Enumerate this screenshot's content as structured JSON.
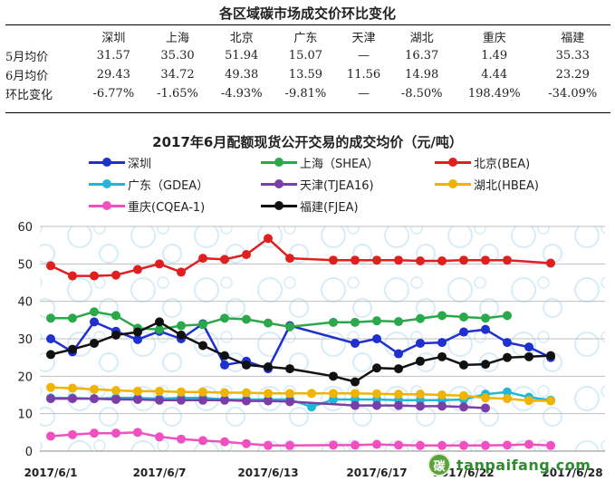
{
  "summary_table": {
    "title": "各区域碳市场成交价环比变化",
    "columns": [
      "深圳",
      "上海",
      "北京",
      "广东",
      "天津",
      "湖北",
      "重庆",
      "福建"
    ],
    "rows": [
      {
        "label": "5月均价",
        "values": [
          "31.57",
          "35.30",
          "51.94",
          "15.07",
          "—",
          "16.37",
          "1.49",
          "35.33"
        ]
      },
      {
        "label": "6月均价",
        "values": [
          "29.43",
          "34.72",
          "49.38",
          "13.59",
          "11.56",
          "14.98",
          "4.44",
          "23.29"
        ]
      },
      {
        "label": "环比变化",
        "values": [
          "-6.77%",
          "-1.65%",
          "-4.93%",
          "-9.81%",
          "—",
          "-8.50%",
          "198.49%",
          "-34.09%"
        ]
      }
    ]
  },
  "chart_data": {
    "type": "line",
    "title": "2017年6月配额现货公开交易的成交均价（元/吨）",
    "xlabel": "",
    "ylabel": "",
    "ylim": [
      0,
      60
    ],
    "yticks": [
      0,
      10,
      20,
      30,
      40,
      50,
      60
    ],
    "x_tick_labels": [
      "2017/6/1",
      "2017/6/7",
      "2017/6/13",
      "2017/6/17",
      "2017/6/22",
      "2017/6/28"
    ],
    "x_tick_positions": [
      0,
      5,
      10,
      15,
      19,
      24
    ],
    "x_count": 26,
    "grid": "horizontal",
    "legend_position": "top",
    "series": [
      {
        "name": "深圳",
        "color": "#1f2fd0",
        "values": [
          30.0,
          26.5,
          34.5,
          32.0,
          29.8,
          32.0,
          30.0,
          34.0,
          23.0,
          24.0,
          22.0,
          33.5,
          null,
          null,
          28.8,
          30.0,
          26.0,
          28.8,
          29.0,
          31.8,
          32.5,
          29.0,
          27.8,
          25.0,
          null,
          null
        ]
      },
      {
        "name": "上海（SHEA）",
        "color": "#2aa84a",
        "values": [
          35.5,
          35.5,
          37.2,
          36.2,
          32.8,
          32.5,
          33.5,
          33.8,
          35.5,
          35.2,
          34.2,
          33.2,
          null,
          34.4,
          34.4,
          34.8,
          34.6,
          35.4,
          36.2,
          35.8,
          35.5,
          36.2,
          null,
          null,
          null,
          null
        ]
      },
      {
        "name": "北京(BEA)",
        "color": "#e02020",
        "values": [
          49.5,
          46.8,
          46.8,
          47.0,
          48.5,
          50.0,
          47.8,
          51.5,
          51.2,
          52.5,
          56.8,
          51.5,
          null,
          51.0,
          51.0,
          51.0,
          51.0,
          50.8,
          50.8,
          51.0,
          51.0,
          51.0,
          null,
          50.2,
          null,
          null
        ]
      },
      {
        "name": "广东（GDEA）",
        "color": "#1fb8d8",
        "values": [
          14.2,
          14.2,
          14.0,
          14.2,
          14.2,
          14.0,
          14.2,
          14.2,
          13.8,
          13.8,
          13.8,
          13.8,
          11.8,
          13.8,
          13.8,
          13.8,
          13.6,
          13.6,
          13.6,
          13.8,
          15.2,
          15.8,
          14.4,
          13.6,
          null,
          null
        ]
      },
      {
        "name": "天津(TJEA16)",
        "color": "#7a3ea8",
        "values": [
          14.0,
          14.0,
          14.0,
          13.8,
          13.8,
          13.6,
          13.6,
          13.6,
          13.6,
          13.4,
          13.4,
          13.2,
          null,
          null,
          12.2,
          12.2,
          12.2,
          12.0,
          12.0,
          11.8,
          11.5,
          null,
          null,
          null,
          null,
          null
        ]
      },
      {
        "name": "湖北(HBEA)",
        "color": "#f0b400",
        "values": [
          17.0,
          16.8,
          16.5,
          16.2,
          16.0,
          16.0,
          15.8,
          15.8,
          15.6,
          15.6,
          15.4,
          15.4,
          15.4,
          15.4,
          15.4,
          15.3,
          15.2,
          15.2,
          15.0,
          14.8,
          14.2,
          14.0,
          13.5,
          13.4,
          null,
          null
        ]
      },
      {
        "name": "重庆(CQEA-1)",
        "color": "#f050c0",
        "values": [
          4.0,
          4.4,
          4.8,
          4.8,
          5.0,
          3.8,
          3.2,
          2.8,
          2.5,
          2.0,
          1.5,
          1.5,
          null,
          1.6,
          1.6,
          1.8,
          1.6,
          1.5,
          1.5,
          1.5,
          1.5,
          1.6,
          1.8,
          1.5,
          null,
          null
        ]
      },
      {
        "name": "福建(FJEA)",
        "color": "#111111",
        "values": [
          25.8,
          27.2,
          28.8,
          31.0,
          31.8,
          34.5,
          31.0,
          28.2,
          25.5,
          23.0,
          22.5,
          22.0,
          null,
          20.0,
          18.5,
          22.2,
          22.0,
          24.0,
          25.2,
          23.0,
          23.2,
          25.0,
          25.2,
          25.5,
          null,
          null
        ]
      }
    ]
  },
  "watermark": {
    "logo_text": "碳",
    "text": "tanpaifang.com"
  }
}
